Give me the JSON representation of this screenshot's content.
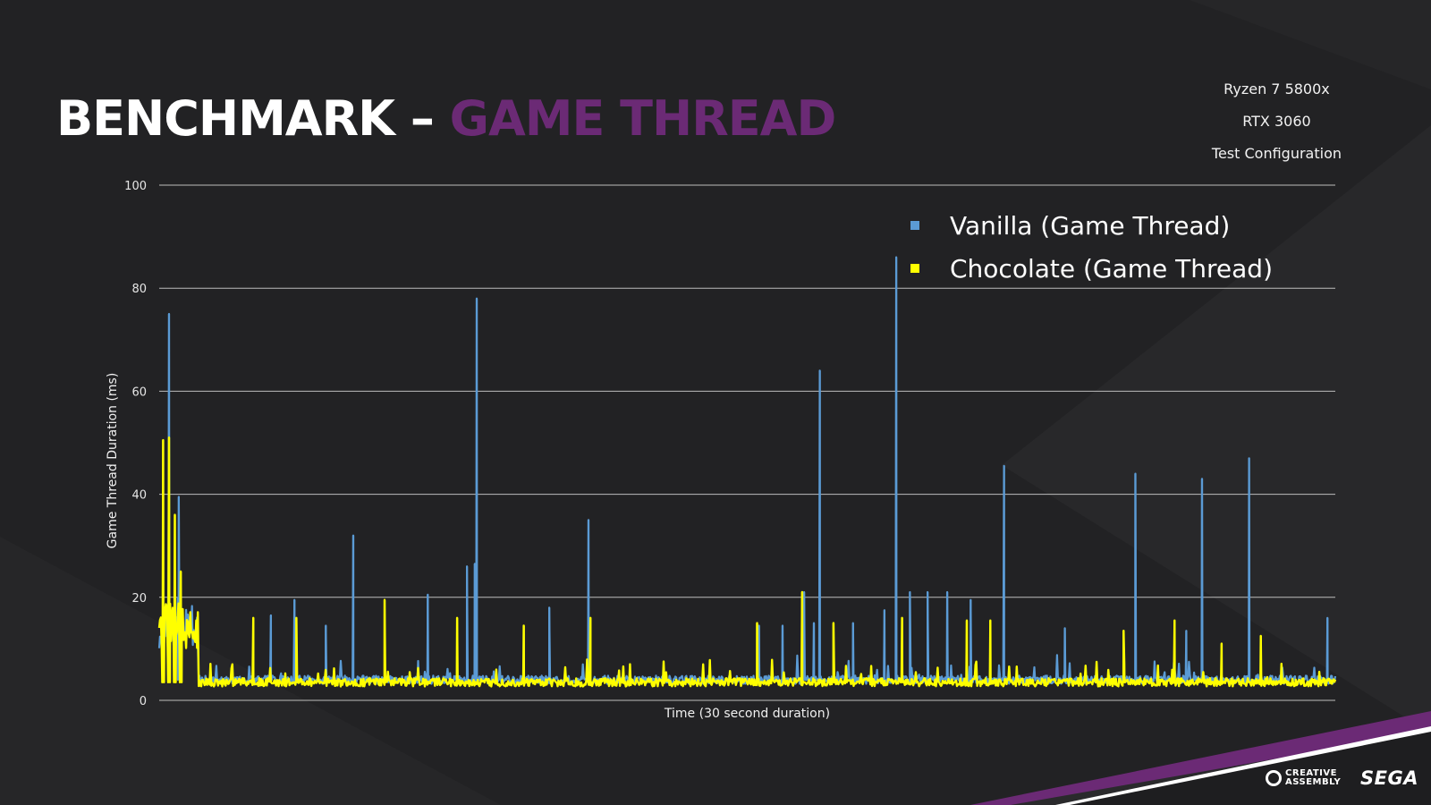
{
  "slide": {
    "title_part1": "BENCHMARK – ",
    "title_part2": "GAME THREAD",
    "config_lines": [
      "Ryzen 7 5800x",
      "RTX 3060",
      "Test Configuration"
    ],
    "logo_left": "CREATIVE ASSEMBLY",
    "logo_right": "SEGA",
    "colors": {
      "title_accent": "#6b2a75",
      "band": "#6b2a75",
      "background": "#222224"
    }
  },
  "chart_data": {
    "type": "line",
    "title": "",
    "xlabel": "Time (30 second duration)",
    "ylabel": "Game Thread Duration (ms)",
    "ylim": [
      0,
      100
    ],
    "yticks": [
      0,
      20,
      40,
      60,
      80,
      100
    ],
    "xlim": [
      0,
      30
    ],
    "grid": true,
    "legend_position": "top-right",
    "baseline": {
      "Vanilla (Game Thread)": 4,
      "Chocolate (Game Thread)": 3.5
    },
    "startup_range": [
      0,
      1.0
    ],
    "series": [
      {
        "name": "Vanilla (Game Thread)",
        "color": "#5b9bd5",
        "peaks": [
          [
            0.25,
            75
          ],
          [
            0.5,
            39.5
          ],
          [
            4.95,
            32
          ],
          [
            8.1,
            78
          ],
          [
            10.95,
            35
          ],
          [
            16.85,
            64
          ],
          [
            18.8,
            86
          ],
          [
            21.55,
            45.5
          ],
          [
            24.9,
            44
          ],
          [
            26.6,
            43
          ],
          [
            27.8,
            47
          ],
          [
            3.45,
            19.5
          ],
          [
            6.85,
            20.5
          ],
          [
            7.85,
            26
          ],
          [
            8.05,
            26.5
          ],
          [
            9.95,
            18
          ],
          [
            16.45,
            21
          ],
          [
            16.7,
            15
          ],
          [
            19.15,
            21
          ],
          [
            19.6,
            21
          ],
          [
            20.1,
            21
          ],
          [
            20.7,
            19.5
          ],
          [
            18.5,
            17.5
          ],
          [
            17.7,
            15
          ],
          [
            23.1,
            14
          ],
          [
            2.85,
            16.5
          ],
          [
            4.25,
            14.5
          ],
          [
            15.3,
            14.5
          ],
          [
            15.9,
            14.5
          ],
          [
            26.2,
            13.5
          ],
          [
            29.8,
            16
          ]
        ]
      },
      {
        "name": "Chocolate (Game Thread)",
        "color": "#ffff00",
        "peaks": [
          [
            0.1,
            50.5
          ],
          [
            0.25,
            51
          ],
          [
            0.4,
            36
          ],
          [
            0.55,
            25
          ],
          [
            5.75,
            19.5
          ],
          [
            7.6,
            16
          ],
          [
            11.0,
            16
          ],
          [
            16.4,
            21
          ],
          [
            17.2,
            15
          ],
          [
            18.95,
            16
          ],
          [
            20.6,
            15.5
          ],
          [
            21.2,
            15.5
          ],
          [
            15.25,
            15
          ],
          [
            3.5,
            16
          ],
          [
            2.4,
            16
          ],
          [
            9.3,
            14.5
          ],
          [
            24.6,
            13.5
          ],
          [
            25.9,
            15.5
          ],
          [
            28.1,
            12.5
          ],
          [
            27.1,
            11
          ]
        ]
      }
    ]
  }
}
